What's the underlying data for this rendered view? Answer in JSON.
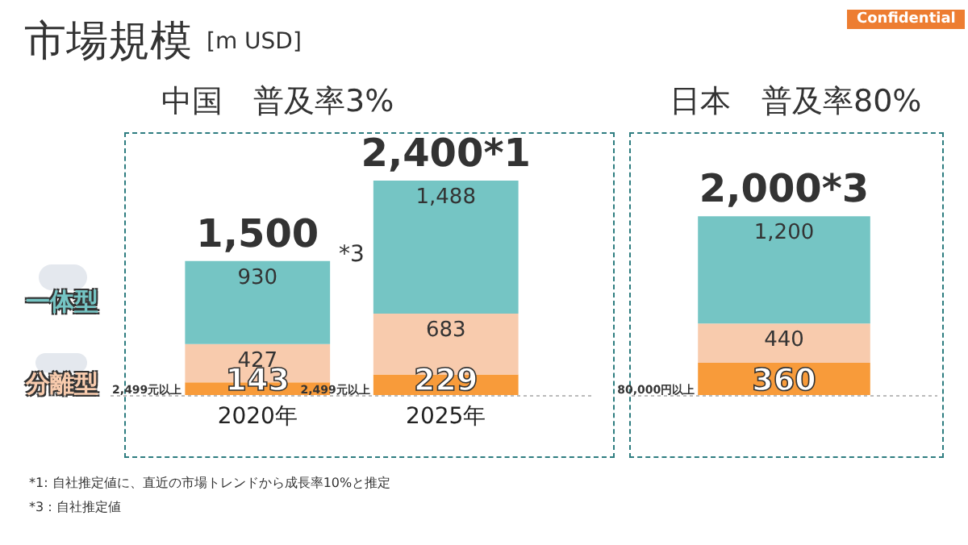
{
  "chart_data": [
    {
      "type": "bar",
      "stacked": true,
      "title": "中国　普及率3%",
      "categories": [
        "2020年",
        "2025年"
      ],
      "series": [
        {
          "name": "2,499元以上",
          "color": "#f89b3a",
          "values": [
            143,
            229
          ],
          "value_labels": [
            "143",
            "229"
          ]
        },
        {
          "name": "分離型",
          "color": "#f8cbad",
          "values": [
            427,
            683
          ],
          "value_labels": [
            "427",
            "683"
          ]
        },
        {
          "name": "一体型",
          "color": "#75c5c4",
          "values": [
            930,
            1488
          ],
          "value_labels": [
            "930",
            "1,488"
          ]
        }
      ],
      "totals": [
        "1,500",
        "2,400*1"
      ],
      "annotations": [
        "市場規模",
        "[m USD]",
        "*3",
        "*1: 自社推定値に、直近の市場トレンドから成長率10%と推定",
        "*3：自社推定値"
      ]
    },
    {
      "type": "bar",
      "stacked": true,
      "title": "日本　普及率80%",
      "categories": [
        null
      ],
      "series": [
        {
          "name": "80,000円以上",
          "color": "#f89b3a",
          "values": [
            360
          ],
          "value_labels": [
            "360"
          ]
        },
        {
          "color": "#f8cbad",
          "values": [
            440
          ],
          "value_labels": [
            "440"
          ]
        },
        {
          "color": "#75c5c4",
          "values": [
            1200
          ],
          "value_labels": [
            "1,200"
          ]
        }
      ],
      "totals": [
        "2,000*3"
      ],
      "annotations": [
        "Confidential"
      ]
    }
  ]
}
